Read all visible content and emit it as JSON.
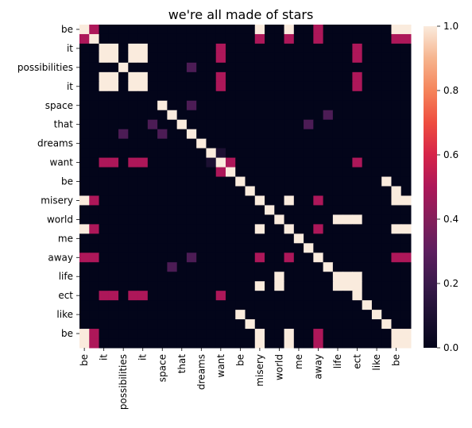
{
  "chart_data": {
    "type": "heatmap",
    "title": "we're all made of stars",
    "x_tick_labels": [
      "be",
      "it",
      "possibilities",
      "it",
      "space",
      "that",
      "dreams",
      "want",
      "be",
      "misery",
      "world",
      "me",
      "away",
      "life",
      "ect",
      "like",
      "be"
    ],
    "y_tick_labels": [
      "be",
      "it",
      "possibilities",
      "it",
      "space",
      "that",
      "dreams",
      "want",
      "be",
      "misery",
      "world",
      "me",
      "away",
      "life",
      "ect",
      "like",
      "be"
    ],
    "tokens": [
      "be",
      "be",
      "it",
      "it",
      "possibilities",
      "possibilities",
      "it",
      "it",
      "space",
      "space",
      "that",
      "that",
      "dreams",
      "dreams",
      "want",
      "want",
      "be",
      "be",
      "misery",
      "misery",
      "world",
      "world",
      "me",
      "me",
      "away",
      "away",
      "life",
      "life",
      "ect",
      "ect",
      "like",
      "like",
      "be",
      "be"
    ],
    "tick_every": 2,
    "values": [
      [
        1,
        0.5,
        0,
        0,
        0,
        0,
        0,
        0,
        0,
        0,
        0,
        0,
        0,
        0,
        0,
        0,
        0,
        0,
        1,
        0,
        0,
        1,
        0,
        0,
        0.5,
        0,
        0,
        0,
        0,
        0,
        0,
        0,
        1,
        1
      ],
      [
        0.5,
        1,
        0,
        0,
        0,
        0,
        0,
        0,
        0,
        0,
        0,
        0,
        0,
        0,
        0,
        0,
        0,
        0,
        0.5,
        0,
        0,
        0.5,
        0,
        0,
        0.5,
        0,
        0,
        0,
        0,
        0,
        0,
        0,
        0.5,
        0.5
      ],
      [
        0,
        0,
        1,
        1,
        0,
        1,
        1,
        0,
        0,
        0,
        0,
        0,
        0,
        0,
        0.5,
        0,
        0,
        0,
        0,
        0,
        0,
        0,
        0,
        0,
        0,
        0,
        0,
        0,
        0.5,
        0,
        0,
        0,
        0,
        0
      ],
      [
        0,
        0,
        1,
        1,
        0,
        1,
        1,
        0,
        0,
        0,
        0,
        0,
        0,
        0,
        0.5,
        0,
        0,
        0,
        0,
        0,
        0,
        0,
        0,
        0,
        0,
        0,
        0,
        0,
        0.5,
        0,
        0,
        0,
        0,
        0
      ],
      [
        0,
        0,
        0,
        0,
        1,
        0,
        0,
        0,
        0,
        0,
        0,
        0.25,
        0,
        0,
        0,
        0,
        0,
        0,
        0,
        0,
        0,
        0,
        0,
        0,
        0,
        0,
        0,
        0,
        0,
        0,
        0,
        0,
        0,
        0
      ],
      [
        0,
        0,
        1,
        1,
        0,
        1,
        1,
        0,
        0,
        0,
        0,
        0,
        0,
        0,
        0.5,
        0,
        0,
        0,
        0,
        0,
        0,
        0,
        0,
        0,
        0,
        0,
        0,
        0,
        0.5,
        0,
        0,
        0,
        0,
        0
      ],
      [
        0,
        0,
        1,
        1,
        0,
        1,
        1,
        0,
        0,
        0,
        0,
        0,
        0,
        0,
        0.5,
        0,
        0,
        0,
        0,
        0,
        0,
        0,
        0,
        0,
        0,
        0,
        0,
        0,
        0.5,
        0,
        0,
        0,
        0,
        0
      ],
      [
        0,
        0,
        0,
        0,
        0,
        0,
        0,
        0,
        0,
        0,
        0,
        0,
        0,
        0,
        0,
        0,
        0,
        0,
        0,
        0,
        0,
        0,
        0,
        0,
        0,
        0,
        0,
        0,
        0,
        0,
        0,
        0,
        0,
        0
      ],
      [
        0,
        0,
        0,
        0,
        0,
        0,
        0,
        0,
        1,
        0,
        0,
        0.25,
        0,
        0,
        0,
        0,
        0,
        0,
        0,
        0,
        0,
        0,
        0,
        0,
        0,
        0,
        0,
        0,
        0,
        0,
        0,
        0,
        0,
        0
      ],
      [
        0,
        0,
        0,
        0,
        0,
        0,
        0,
        0,
        0,
        1,
        0,
        0,
        0,
        0,
        0,
        0,
        0,
        0,
        0,
        0,
        0,
        0,
        0,
        0,
        0,
        0.25,
        0,
        0,
        0,
        0,
        0,
        0,
        0,
        0
      ],
      [
        0,
        0,
        0,
        0,
        0,
        0,
        0,
        0.25,
        0,
        0,
        1,
        0,
        0,
        0,
        0,
        0,
        0,
        0,
        0,
        0,
        0,
        0,
        0,
        0.25,
        0,
        0,
        0,
        0,
        0,
        0,
        0,
        0,
        0,
        0
      ],
      [
        0,
        0,
        0,
        0,
        0.25,
        0,
        0,
        0,
        0.25,
        0,
        0,
        1,
        0,
        0,
        0,
        0,
        0,
        0,
        0,
        0,
        0,
        0,
        0,
        0,
        0,
        0,
        0,
        0,
        0,
        0,
        0,
        0,
        0,
        0
      ],
      [
        0,
        0,
        0,
        0,
        0,
        0,
        0,
        0,
        0,
        0,
        0,
        0,
        1,
        0,
        0,
        0,
        0,
        0,
        0,
        0,
        0,
        0,
        0,
        0,
        0,
        0,
        0,
        0,
        0,
        0,
        0,
        0,
        0,
        0
      ],
      [
        0,
        0,
        0,
        0,
        0,
        0,
        0,
        0,
        0,
        0,
        0,
        0,
        0,
        1,
        0.1,
        0,
        0,
        0,
        0,
        0,
        0,
        0,
        0,
        0,
        0,
        0,
        0,
        0,
        0,
        0,
        0,
        0,
        0,
        0
      ],
      [
        0,
        0,
        0.5,
        0.5,
        0,
        0.5,
        0.5,
        0,
        0,
        0,
        0,
        0,
        0,
        0.1,
        1,
        0.5,
        0,
        0,
        0,
        0,
        0,
        0,
        0,
        0,
        0,
        0,
        0,
        0,
        0.5,
        0,
        0,
        0,
        0,
        0
      ],
      [
        0,
        0,
        0,
        0,
        0,
        0,
        0,
        0,
        0,
        0,
        0,
        0,
        0,
        0,
        0.5,
        1,
        0,
        0,
        0,
        0,
        0,
        0,
        0,
        0,
        0,
        0,
        0,
        0,
        0,
        0,
        0,
        0,
        0,
        0
      ],
      [
        0,
        0,
        0,
        0,
        0,
        0,
        0,
        0,
        0,
        0,
        0,
        0,
        0,
        0,
        0,
        0,
        1,
        0,
        0,
        0,
        0,
        0,
        0,
        0,
        0,
        0,
        0,
        0,
        0,
        0,
        0,
        1,
        0,
        0
      ],
      [
        0,
        0,
        0,
        0,
        0,
        0,
        0,
        0,
        0,
        0,
        0,
        0,
        0,
        0,
        0,
        0,
        0,
        1,
        0,
        0,
        0,
        0,
        0,
        0,
        0,
        0,
        0,
        0,
        0,
        0,
        0,
        0,
        1,
        0
      ],
      [
        1,
        0.5,
        0,
        0,
        0,
        0,
        0,
        0,
        0,
        0,
        0,
        0,
        0,
        0,
        0,
        0,
        0,
        0,
        1,
        0,
        0,
        1,
        0,
        0,
        0.5,
        0,
        0,
        0,
        0,
        0,
        0,
        0,
        1,
        1
      ],
      [
        0,
        0,
        0,
        0,
        0,
        0,
        0,
        0,
        0,
        0,
        0,
        0,
        0,
        0,
        0,
        0,
        0,
        0,
        0,
        1,
        0,
        0,
        0,
        0,
        0,
        0,
        0,
        0,
        0,
        0,
        0,
        0,
        0,
        0
      ],
      [
        0,
        0,
        0,
        0,
        0,
        0,
        0,
        0,
        0,
        0,
        0,
        0,
        0,
        0,
        0,
        0,
        0,
        0,
        0,
        0,
        1,
        0,
        0,
        0,
        0,
        0,
        1,
        1,
        1,
        0,
        0,
        0,
        0,
        0
      ],
      [
        1,
        0.5,
        0,
        0,
        0,
        0,
        0,
        0,
        0,
        0,
        0,
        0,
        0,
        0,
        0,
        0,
        0,
        0,
        1,
        0,
        0,
        1,
        0,
        0,
        0.5,
        0,
        0,
        0,
        0,
        0,
        0,
        0,
        1,
        1
      ],
      [
        0,
        0,
        0,
        0,
        0,
        0,
        0,
        0,
        0,
        0,
        0,
        0,
        0,
        0,
        0,
        0,
        0,
        0,
        0,
        0,
        0,
        0,
        1,
        0,
        0,
        0,
        0,
        0,
        0,
        0,
        0,
        0,
        0,
        0
      ],
      [
        0,
        0,
        0,
        0,
        0,
        0,
        0,
        0,
        0,
        0,
        0,
        0,
        0,
        0,
        0,
        0,
        0,
        0,
        0,
        0,
        0,
        0,
        0,
        1,
        0,
        0,
        0,
        0,
        0,
        0,
        0,
        0,
        0,
        0
      ],
      [
        0.5,
        0.5,
        0,
        0,
        0,
        0,
        0,
        0,
        0,
        0,
        0,
        0.25,
        0,
        0,
        0,
        0,
        0,
        0,
        0.5,
        0,
        0,
        0.5,
        0,
        0,
        1,
        0,
        0,
        0,
        0,
        0,
        0,
        0,
        0.5,
        0.5
      ],
      [
        0,
        0,
        0,
        0,
        0,
        0,
        0,
        0,
        0,
        0.25,
        0,
        0,
        0,
        0,
        0,
        0,
        0,
        0,
        0,
        0,
        0,
        0,
        0,
        0,
        0,
        1,
        0,
        0,
        0,
        0,
        0,
        0,
        0,
        0
      ],
      [
        0,
        0,
        0,
        0,
        0,
        0,
        0,
        0,
        0,
        0,
        0,
        0,
        0,
        0,
        0,
        0,
        0,
        0,
        0,
        0,
        1,
        0,
        0,
        0,
        0,
        0,
        1,
        1,
        1,
        0,
        0,
        0,
        0,
        0
      ],
      [
        0,
        0,
        0,
        0,
        0,
        0,
        0,
        0,
        0,
        0,
        0,
        0,
        0,
        0,
        0,
        0,
        0,
        0,
        1,
        0,
        1,
        0,
        0,
        0,
        0,
        0,
        1,
        1,
        1,
        0,
        0,
        0,
        0,
        0
      ],
      [
        0,
        0,
        0.5,
        0.5,
        0,
        0.5,
        0.5,
        0,
        0,
        0,
        0,
        0,
        0,
        0,
        0.5,
        0,
        0,
        0,
        0,
        0,
        0,
        0,
        0,
        0,
        0,
        0,
        0,
        0,
        1,
        0,
        0,
        0,
        0,
        0
      ],
      [
        0,
        0,
        0,
        0,
        0,
        0,
        0,
        0,
        0,
        0,
        0,
        0,
        0,
        0,
        0,
        0,
        0,
        0,
        0,
        0,
        0,
        0,
        0,
        0,
        0,
        0,
        0,
        0,
        0,
        1,
        0,
        0,
        0,
        0
      ],
      [
        0,
        0,
        0,
        0,
        0,
        0,
        0,
        0,
        0,
        0,
        0,
        0,
        0,
        0,
        0,
        0,
        1,
        0,
        0,
        0,
        0,
        0,
        0,
        0,
        0,
        0,
        0,
        0,
        0,
        0,
        1,
        0,
        0,
        0
      ],
      [
        0,
        0,
        0,
        0,
        0,
        0,
        0,
        0,
        0,
        0,
        0,
        0,
        0,
        0,
        0,
        0,
        0,
        1,
        0,
        0,
        0,
        0,
        0,
        0,
        0,
        0,
        0,
        0,
        0,
        0,
        0,
        1,
        0,
        0
      ],
      [
        1,
        0.5,
        0,
        0,
        0,
        0,
        0,
        0,
        0,
        0,
        0,
        0,
        0,
        0,
        0,
        0,
        0,
        0,
        1,
        0,
        0,
        1,
        0,
        0,
        0.5,
        0,
        0,
        0,
        0,
        0,
        0,
        0,
        1,
        1
      ],
      [
        1,
        0.5,
        0,
        0,
        0,
        0,
        0,
        0,
        0,
        0,
        0,
        0,
        0,
        0,
        0,
        0,
        0,
        0,
        1,
        0,
        0,
        1,
        0,
        0,
        0.5,
        0,
        0,
        0,
        0,
        0,
        0,
        0,
        1,
        1
      ]
    ],
    "vmin": 0,
    "vmax": 1,
    "colorbar_ticks": [
      0.0,
      0.2,
      0.4,
      0.6,
      0.8,
      1.0
    ],
    "colorbar_tick_labels": [
      "0.0",
      "0.2",
      "0.4",
      "0.6",
      "0.8",
      "1.0"
    ],
    "colormap": "rocket",
    "grid": false,
    "legend": "colorbar-right"
  }
}
